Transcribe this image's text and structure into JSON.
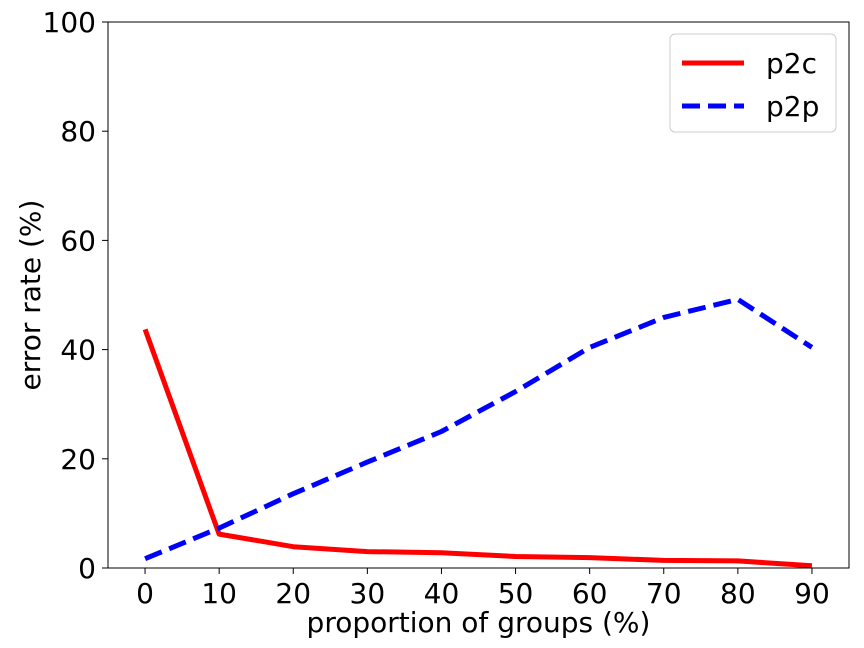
{
  "chart_data": {
    "type": "line",
    "title": "",
    "xlabel": "proportion of groups (%)",
    "ylabel": "error rate (%)",
    "x": [
      0,
      10,
      20,
      30,
      40,
      50,
      60,
      70,
      80,
      90
    ],
    "xticks": [
      "0",
      "10",
      "20",
      "30",
      "40",
      "50",
      "60",
      "70",
      "80",
      "90"
    ],
    "yticks": [
      "0",
      "20",
      "40",
      "60",
      "80",
      "100"
    ],
    "xlim": [
      -5,
      95
    ],
    "ylim": [
      0,
      100
    ],
    "grid": false,
    "legend_position": "top-right",
    "series": [
      {
        "name": "p2c",
        "color": "#ff0000",
        "style": "solid",
        "values": [
          43.7,
          6.2,
          3.9,
          3.0,
          2.8,
          2.1,
          1.9,
          1.4,
          1.3,
          0.4
        ]
      },
      {
        "name": "p2p",
        "color": "#0000ff",
        "style": "dashed",
        "values": [
          1.7,
          7.3,
          13.6,
          19.4,
          25.0,
          32.3,
          40.4,
          45.9,
          49.2,
          40.4
        ]
      }
    ]
  }
}
